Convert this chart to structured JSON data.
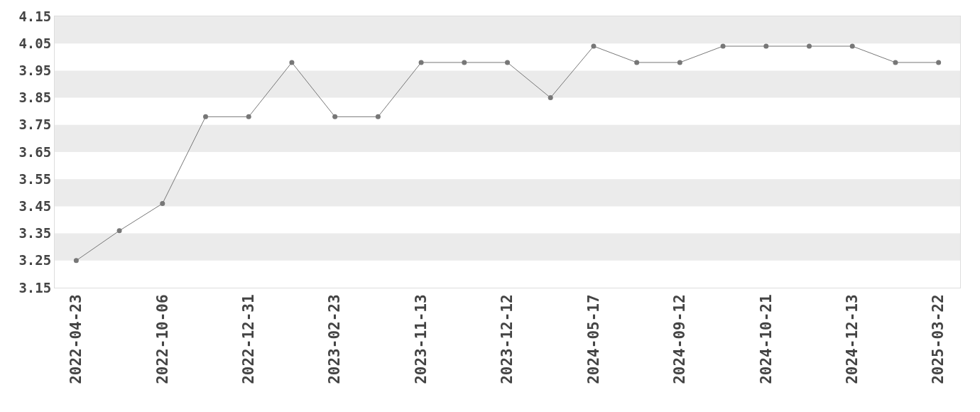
{
  "chart_data": {
    "type": "line",
    "categories": [
      "2022-04-23",
      null,
      "2022-10-06",
      null,
      "2022-12-31",
      null,
      "2023-02-23",
      null,
      "2023-11-13",
      null,
      "2023-12-12",
      null,
      "2024-05-17",
      null,
      "2024-09-12",
      null,
      "2024-10-21",
      null,
      "2024-12-13",
      null,
      "2025-03-22"
    ],
    "series": [
      {
        "color": "#777777",
        "values": [
          3.25,
          3.36,
          3.46,
          3.78,
          3.78,
          3.98,
          3.78,
          3.78,
          3.98,
          3.98,
          3.98,
          3.85,
          4.04,
          3.98,
          3.98,
          4.04,
          4.04,
          4.04,
          4.04,
          3.98,
          3.98
        ]
      }
    ],
    "ylim": [
      3.15,
      4.15
    ],
    "yticks": [
      3.15,
      3.25,
      3.35,
      3.45,
      3.55,
      3.65,
      3.75,
      3.85,
      3.95,
      4.05,
      4.15
    ],
    "marker": "circle",
    "line_style": "solid"
  }
}
